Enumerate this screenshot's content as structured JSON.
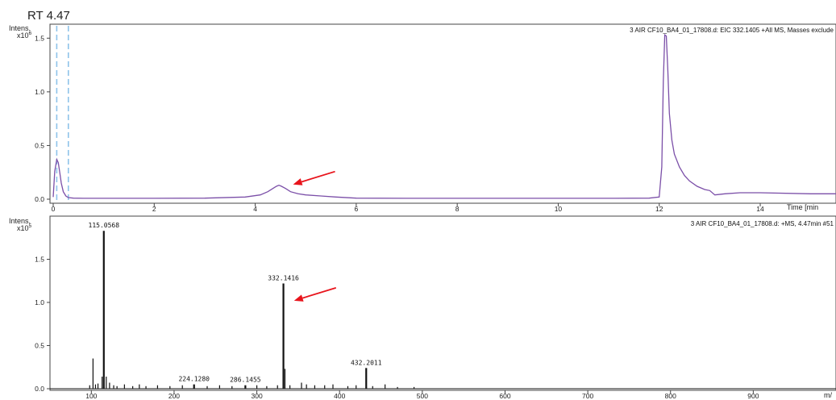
{
  "rt_label": "RT 4.47",
  "arrow_color": "#e8141c",
  "chart_data": [
    {
      "type": "line",
      "title": "3 AIR CF10_BA4_01_17808.d: EIC 332.1405 +All MS, Masses exclude",
      "ylabel": "Intens.",
      "ylabel_scale": "x10",
      "ylabel_exponent": "6",
      "xlabel": "Time [min",
      "xlim": [
        0,
        15.5
      ],
      "ylim": [
        0,
        1.6
      ],
      "xticks": [
        0,
        2,
        4,
        6,
        8,
        10,
        12,
        14
      ],
      "yticks": [
        0.0,
        0.5,
        1.0,
        1.5
      ],
      "ytick_labels": [
        "0.0",
        "0.5",
        "1.0",
        "1.5"
      ],
      "series_color": "#7b4fa8",
      "markers": [
        0.07,
        0.3
      ],
      "marker_color": "#8ec3ea",
      "series": [
        {
          "x": [
            0,
            0.03,
            0.07,
            0.1,
            0.13,
            0.16,
            0.2,
            0.25,
            0.3,
            0.4,
            0.6,
            1,
            2,
            3,
            3.8,
            4.1,
            4.25,
            4.35,
            4.42,
            4.47,
            4.52,
            4.6,
            4.7,
            4.85,
            5.0,
            5.3,
            5.6,
            6,
            7,
            8,
            9,
            10,
            11,
            11.8,
            12.0,
            12.05,
            12.08,
            12.11,
            12.14,
            12.17,
            12.2,
            12.25,
            12.3,
            12.4,
            12.5,
            12.6,
            12.75,
            12.9,
            13.0,
            13.1,
            13.3,
            13.6,
            14,
            15,
            15.5
          ],
          "y": [
            0.02,
            0.26,
            0.37,
            0.34,
            0.25,
            0.15,
            0.07,
            0.03,
            0.015,
            0.01,
            0.008,
            0.008,
            0.008,
            0.01,
            0.02,
            0.04,
            0.07,
            0.1,
            0.12,
            0.13,
            0.12,
            0.1,
            0.07,
            0.05,
            0.04,
            0.03,
            0.02,
            0.01,
            0.008,
            0.008,
            0.008,
            0.008,
            0.008,
            0.01,
            0.02,
            0.3,
            1.1,
            1.53,
            1.52,
            1.2,
            0.8,
            0.55,
            0.42,
            0.3,
            0.22,
            0.17,
            0.12,
            0.09,
            0.08,
            0.04,
            0.05,
            0.06,
            0.06,
            0.05,
            0.05
          ]
        }
      ],
      "arrow_point_to": [
        4.75,
        0.13
      ]
    },
    {
      "type": "bar",
      "title": "3 AIR CF10_BA4_01_17808.d: +MS, 4.47min #51",
      "ylabel": "Intens.",
      "ylabel_scale": "x10",
      "ylabel_exponent": "5",
      "xlabel": "m/",
      "xlim": [
        50,
        1000
      ],
      "ylim": [
        0,
        2.0
      ],
      "xticks": [
        100,
        200,
        300,
        400,
        500,
        600,
        700,
        800,
        900
      ],
      "yticks": [
        0.0,
        0.5,
        1.0,
        1.5
      ],
      "ytick_labels": [
        "0.0",
        "0.5",
        "1.0",
        "1.5"
      ],
      "series_color": "#111111",
      "peaks": [
        {
          "mz": 115.0568,
          "intensity": 1.83,
          "label": "115.0568"
        },
        {
          "mz": 332.1416,
          "intensity": 1.22,
          "label": "332.1416"
        },
        {
          "mz": 432.2011,
          "intensity": 0.24,
          "label": "432.2011"
        },
        {
          "mz": 224.128,
          "intensity": 0.05,
          "label": "224.1280"
        },
        {
          "mz": 286.1455,
          "intensity": 0.04,
          "label": "286.1455"
        }
      ],
      "minor_peaks": [
        {
          "mz": 98,
          "intensity": 0.04
        },
        {
          "mz": 102,
          "intensity": 0.35
        },
        {
          "mz": 105,
          "intensity": 0.05
        },
        {
          "mz": 108,
          "intensity": 0.06
        },
        {
          "mz": 113,
          "intensity": 0.14
        },
        {
          "mz": 118,
          "intensity": 0.14
        },
        {
          "mz": 122,
          "intensity": 0.07
        },
        {
          "mz": 127,
          "intensity": 0.04
        },
        {
          "mz": 131,
          "intensity": 0.03
        },
        {
          "mz": 140,
          "intensity": 0.05
        },
        {
          "mz": 150,
          "intensity": 0.03
        },
        {
          "mz": 158,
          "intensity": 0.05
        },
        {
          "mz": 166,
          "intensity": 0.03
        },
        {
          "mz": 180,
          "intensity": 0.04
        },
        {
          "mz": 195,
          "intensity": 0.03
        },
        {
          "mz": 210,
          "intensity": 0.04
        },
        {
          "mz": 240,
          "intensity": 0.03
        },
        {
          "mz": 255,
          "intensity": 0.04
        },
        {
          "mz": 270,
          "intensity": 0.03
        },
        {
          "mz": 300,
          "intensity": 0.04
        },
        {
          "mz": 312,
          "intensity": 0.03
        },
        {
          "mz": 325,
          "intensity": 0.04
        },
        {
          "mz": 334,
          "intensity": 0.23
        },
        {
          "mz": 340,
          "intensity": 0.04
        },
        {
          "mz": 354,
          "intensity": 0.07
        },
        {
          "mz": 360,
          "intensity": 0.05
        },
        {
          "mz": 370,
          "intensity": 0.04
        },
        {
          "mz": 382,
          "intensity": 0.04
        },
        {
          "mz": 392,
          "intensity": 0.05
        },
        {
          "mz": 410,
          "intensity": 0.03
        },
        {
          "mz": 420,
          "intensity": 0.04
        },
        {
          "mz": 440,
          "intensity": 0.03
        },
        {
          "mz": 455,
          "intensity": 0.05
        },
        {
          "mz": 470,
          "intensity": 0.02
        },
        {
          "mz": 490,
          "intensity": 0.02
        }
      ],
      "arrow_point_to": [
        345,
        1.02
      ]
    }
  ]
}
